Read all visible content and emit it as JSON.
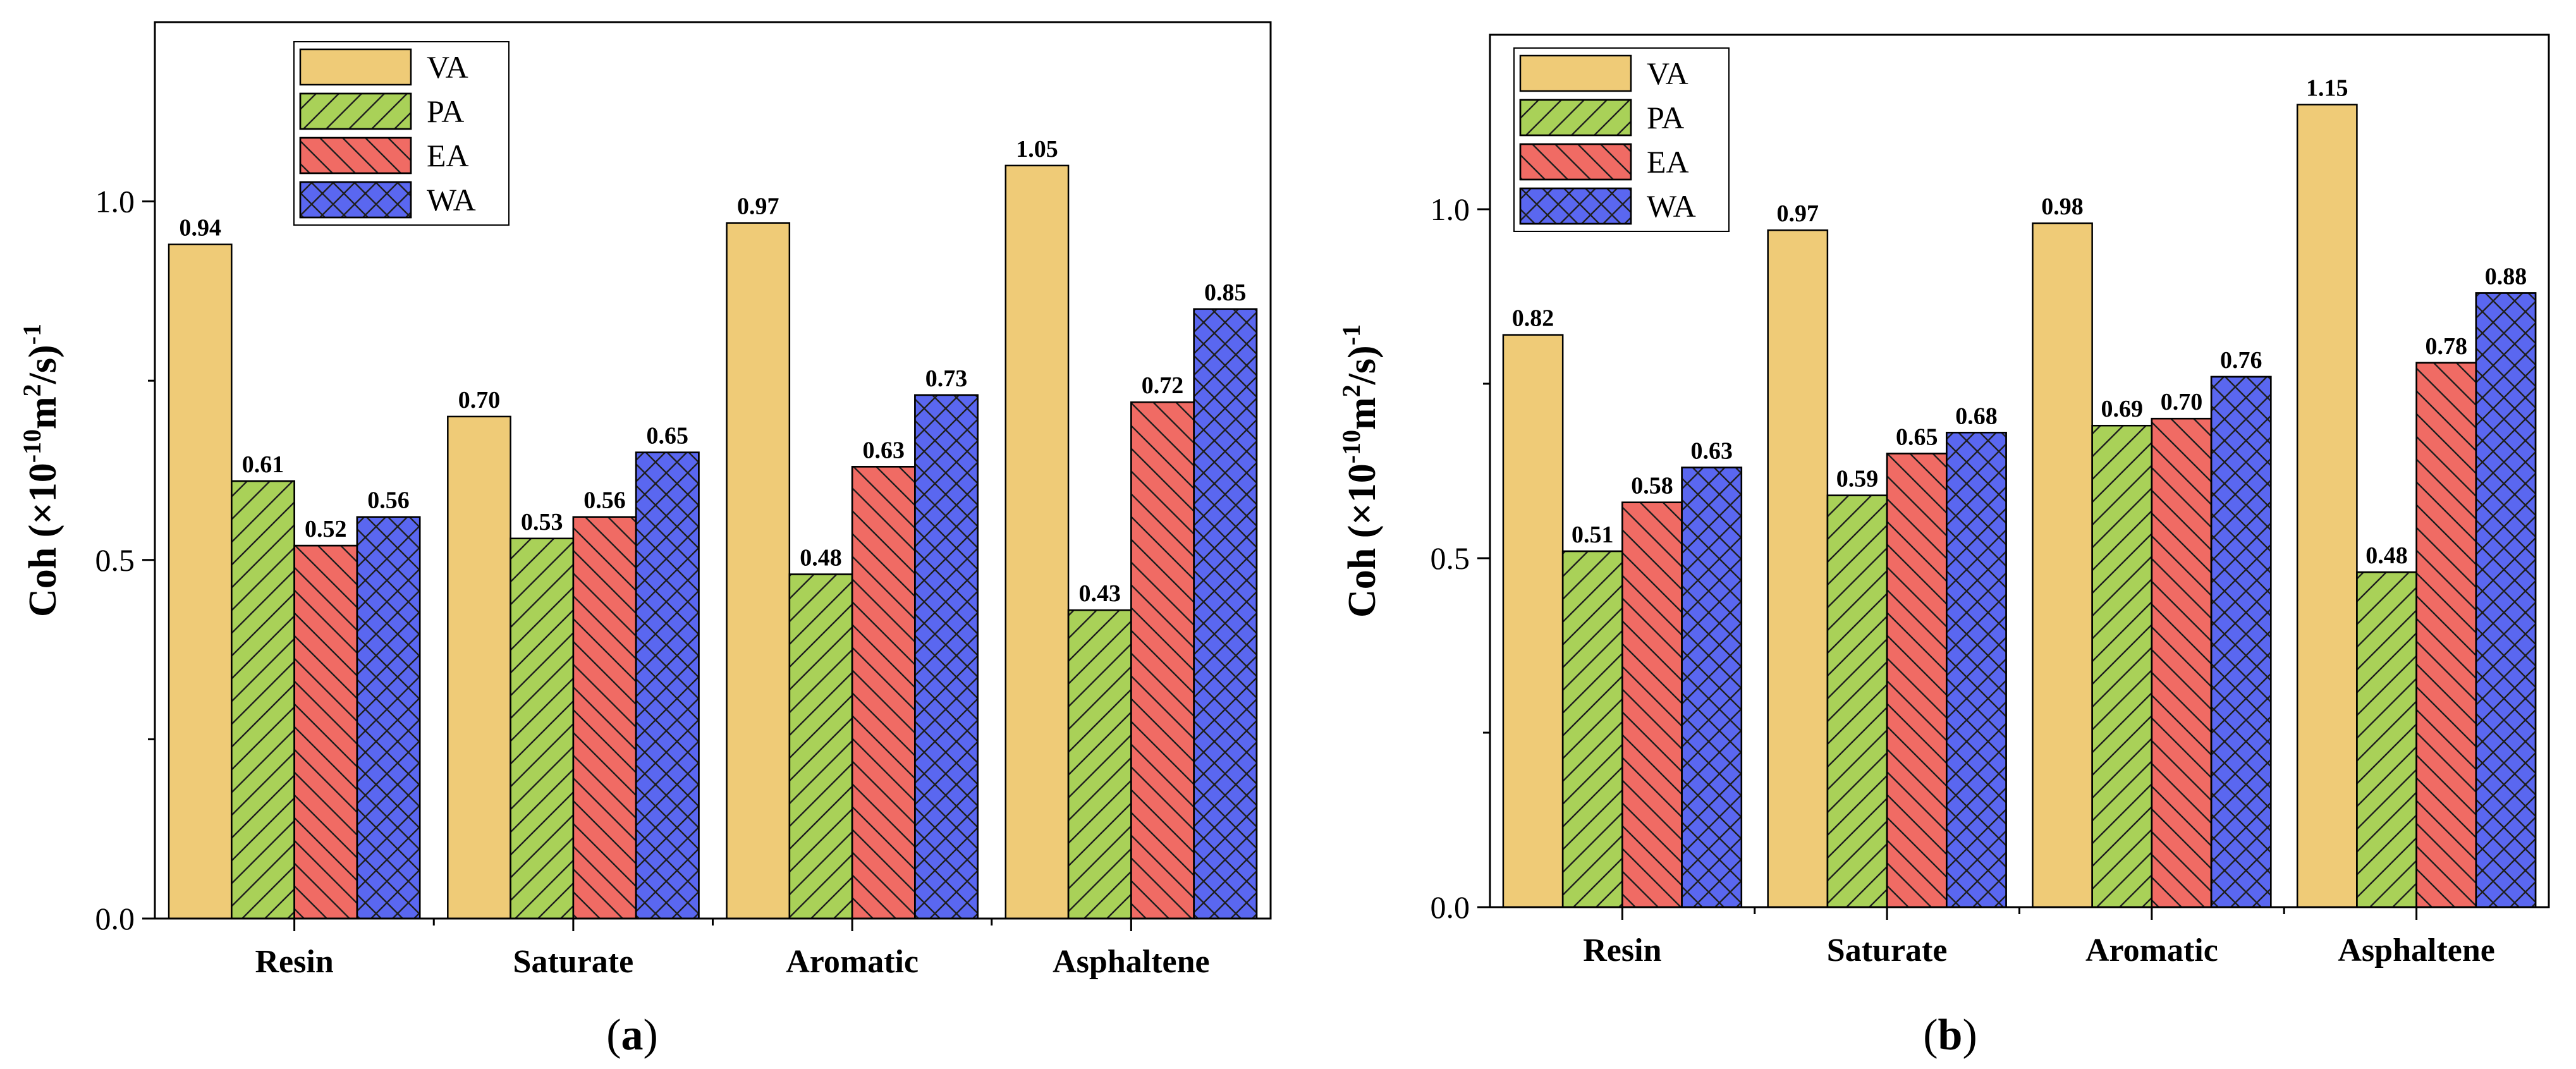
{
  "colors": {
    "VA": "#EFCB77",
    "PA": "#A9D158",
    "EA": "#F06B64",
    "WA": "#5A67F0",
    "axis": "#000000",
    "hatch": "#1f1f1f"
  },
  "chart_data": [
    {
      "type": "bar",
      "panel_label": "a",
      "categories": [
        "Resin",
        "Saturate",
        "Aromatic",
        "Asphaltene"
      ],
      "series": [
        {
          "name": "VA",
          "values": [
            0.94,
            0.7,
            0.97,
            1.05
          ]
        },
        {
          "name": "PA",
          "values": [
            0.61,
            0.53,
            0.48,
            0.43
          ]
        },
        {
          "name": "EA",
          "values": [
            0.52,
            0.56,
            0.63,
            0.72
          ]
        },
        {
          "name": "WA",
          "values": [
            0.56,
            0.65,
            0.73,
            0.85
          ]
        }
      ],
      "data_labels": [
        [
          "0.94",
          "0.70",
          "0.97",
          "1.05"
        ],
        [
          "0.61",
          "0.53",
          "0.48",
          "0.43"
        ],
        [
          "0.52",
          "0.56",
          "0.63",
          "0.72"
        ],
        [
          "0.56",
          "0.65",
          "0.73",
          "0.85"
        ]
      ],
      "ylabel_base": "Coh (×10",
      "ylabel_exp1": "-10",
      "ylabel_mid": "m",
      "ylabel_exp2": "2",
      "ylabel_end": "/s)",
      "ylabel_exp3": "-1",
      "yticks": [
        "0.0",
        "0.5",
        "1.0"
      ],
      "ylim": [
        0,
        1.25
      ],
      "legend": "top-left",
      "grid": false
    },
    {
      "type": "bar",
      "panel_label": "b",
      "categories": [
        "Resin",
        "Saturate",
        "Aromatic",
        "Asphaltene"
      ],
      "series": [
        {
          "name": "VA",
          "values": [
            0.82,
            0.97,
            0.98,
            1.15
          ]
        },
        {
          "name": "PA",
          "values": [
            0.51,
            0.59,
            0.69,
            0.48
          ]
        },
        {
          "name": "EA",
          "values": [
            0.58,
            0.65,
            0.7,
            0.78
          ]
        },
        {
          "name": "WA",
          "values": [
            0.63,
            0.68,
            0.76,
            0.88
          ]
        }
      ],
      "data_labels": [
        [
          "0.82",
          "0.97",
          "0.98",
          "1.15"
        ],
        [
          "0.51",
          "0.59",
          "0.69",
          "0.48"
        ],
        [
          "0.58",
          "0.65",
          "0.70",
          "0.78"
        ],
        [
          "0.63",
          "0.68",
          "0.76",
          "0.88"
        ]
      ],
      "ylabel_base": "Coh (×10",
      "ylabel_exp1": "-10",
      "ylabel_mid": "m",
      "ylabel_exp2": "2",
      "ylabel_end": "/s)",
      "ylabel_exp3": "-1",
      "yticks": [
        "0.0",
        "0.5",
        "1.0"
      ],
      "ylim": [
        0,
        1.25
      ],
      "legend": "top-left",
      "grid": false
    }
  ]
}
